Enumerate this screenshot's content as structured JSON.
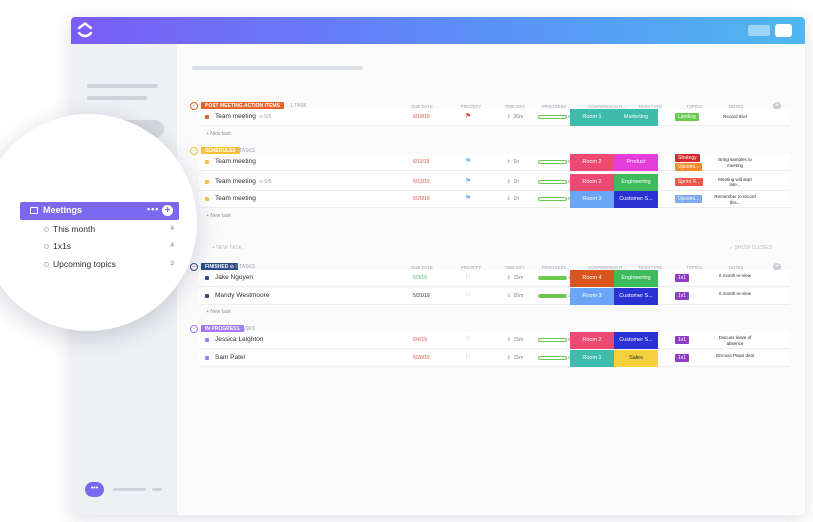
{
  "columns": [
    "DUE DATE",
    "PRIORITY",
    "TIME EST.",
    "PROGRESS",
    "CONFERENCE R...",
    "TEAM TYPE",
    "TOPICS",
    "NOTES"
  ],
  "groups": [
    {
      "badge": "POST MEETING ACTION ITEMS",
      "badge_color": "#e8632a",
      "count": "1 TASK",
      "new_task": "+ New task",
      "rows": [
        {
          "name": "Team meeting",
          "sub": "⊙ 0/5",
          "dot": "#e8632a",
          "date": "6/18/19",
          "date_color": "#e04f44",
          "flag": "⚑",
          "flag_color": "#e04f44",
          "time": "30m",
          "progress": 0,
          "pct": "0%",
          "room": "Room 1",
          "room_color": "#3dbbab",
          "team": "Marketing",
          "team_color": "#3dbbab",
          "tag": "Landing",
          "tag_color": "#6bc950",
          "note": "Record this!"
        }
      ]
    },
    {
      "badge": "SCHEDULED",
      "badge_color": "#f9c03f",
      "count": "3 TASKS",
      "new_task": "+ New task",
      "rows": [
        {
          "name": "Team meeting",
          "sub": "",
          "dot": "#f9c03f",
          "date": "6/11/19",
          "date_color": "#e04f44",
          "flag": "⚑",
          "flag_color": "#7fb9f0",
          "time": "1h",
          "progress": 0,
          "pct": "0%",
          "room": "Room 2",
          "room_color": "#ec4a72",
          "team": "Product",
          "team_color": "#e53dd9",
          "tag": "Strategy",
          "tag_color": "#d62a2a",
          "tag2": "Upcomi...",
          "tag2_color": "#f58b2c",
          "note": "Bring samples to meeting"
        },
        {
          "name": "Team meeting",
          "sub": "⊙ 0/5",
          "dot": "#f9c03f",
          "date": "6/13/19",
          "date_color": "#e04f44",
          "flag": "⚑",
          "flag_color": "#7fb9f0",
          "time": "1h",
          "progress": 0,
          "pct": "0%",
          "room": "Room 2",
          "room_color": "#ec4a72",
          "team": "Engineering",
          "team_color": "#3dbb5c",
          "tag": "Sprint R...",
          "tag_color": "#f0544a",
          "note": "Meeting will start late..."
        },
        {
          "name": "Team meeting",
          "sub": "",
          "dot": "#f9c03f",
          "date": "6/20/19",
          "date_color": "#e04f44",
          "flag": "⚑",
          "flag_color": "#7fb9f0",
          "time": "1h",
          "progress": 0,
          "pct": "0%",
          "room": "Room 3",
          "room_color": "#6aa6f5",
          "team": "Customer S...",
          "team_color": "#2a32d4",
          "tag": "Upcomi...",
          "tag_color": "#7fa8ef",
          "note": "Remember to record this..."
        }
      ]
    },
    {
      "badge": "FINISHED ⊙",
      "badge_color": "#2b4a8b",
      "count": "2 TASKS",
      "new_task": "+ New task",
      "rows": [
        {
          "name": "Jake Nguyen",
          "sub": "",
          "dot": "#2b4a8b",
          "date": "6/3/19",
          "date_color": "#3dbb5c",
          "flag": "⚐",
          "flag_color": "#c2c6cc",
          "time": "15m",
          "progress": 100,
          "pct": "100%",
          "room": "Room 4",
          "room_color": "#d9541e",
          "team": "Engineering",
          "team_color": "#3dbb5c",
          "tag": "1x1",
          "tag_color": "#8c3fc2",
          "note": "6 month re-view"
        },
        {
          "name": "Mandy Westmoore",
          "sub": "",
          "dot": "#2b4a8b",
          "date": "5/31/19",
          "date_color": "#2a2e34",
          "flag": "⚐",
          "flag_color": "#c2c6cc",
          "time": "20m",
          "progress": 100,
          "pct": "100%",
          "room": "Room 3",
          "room_color": "#6aa6f5",
          "team": "Customer S...",
          "team_color": "#2a32d4",
          "tag": "1x1",
          "tag_color": "#8c3fc2",
          "note": "6 month re-view"
        }
      ]
    },
    {
      "badge": "IN PROGRESS",
      "badge_color": "#a875ff",
      "count": "2 TASKS",
      "rows": [
        {
          "name": "Jessica Leighton",
          "sub": "",
          "dot": "#a875ff",
          "date": "6/4/19",
          "date_color": "#e04f44",
          "flag": "⚐",
          "flag_color": "#c2c6cc",
          "time": "15m",
          "progress": 0,
          "pct": "0%",
          "room": "Room 2",
          "room_color": "#ec4a72",
          "team": "Customer S...",
          "team_color": "#2a32d4",
          "tag": "1x1",
          "tag_color": "#8c3fc2",
          "note": "Discuss leave of absence"
        },
        {
          "name": "Sam Patel",
          "sub": "",
          "dot": "#a875ff",
          "date": "6/28/19",
          "date_color": "#e04f44",
          "flag": "⚐",
          "flag_color": "#c2c6cc",
          "time": "15m",
          "progress": 0,
          "pct": "0%",
          "room": "Room 1",
          "room_color": "#3dbbab",
          "team": "Sales",
          "team_color": "#f4d03f",
          "team_text": "#2a2e34",
          "tag": "1x1",
          "tag_color": "#8c3fc2",
          "note": "Discuss Pepsi deal"
        }
      ]
    }
  ],
  "section": {
    "number": "5",
    "new_task": "+ NEW TASK",
    "show_closed": "✓ SHOW CLOSED"
  },
  "sidebar": {
    "folder": {
      "label": "Meetings",
      "more": "•••",
      "add": "+"
    },
    "items": [
      {
        "label": "This month",
        "count": "4"
      },
      {
        "label": "1x1s",
        "count": "4"
      },
      {
        "label": "Upcoming topics",
        "count": "3"
      }
    ]
  },
  "chat": {
    "icon": "•••"
  }
}
